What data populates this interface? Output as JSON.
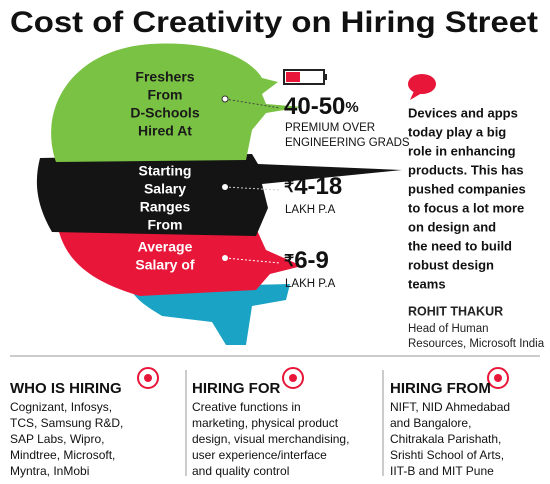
{
  "title": "Cost of Creativity on Hiring Street",
  "stats": [
    {
      "label": [
        "Freshers",
        "From",
        "D-Schools",
        "Hired At"
      ],
      "value": "40-50",
      "unit": "%",
      "note": [
        "PREMIUM OVER",
        "ENGINEERING GRADS"
      ]
    },
    {
      "label": [
        "Starting",
        "Salary",
        "Ranges",
        "From"
      ],
      "prefix": "₹",
      "value": "4-18",
      "note": [
        "LAKH P.A"
      ]
    },
    {
      "label": [
        "Average",
        "Salary of"
      ],
      "prefix": "₹",
      "value": "6-9",
      "note": [
        "LAKH P.A"
      ]
    }
  ],
  "quote": {
    "lines": [
      "Devices and apps",
      "today play a big",
      "role in enhancing",
      "products. This has",
      "pushed companies",
      "to focus a lot more",
      "on design and",
      "the need to build",
      "robust design",
      "teams"
    ],
    "author": "ROHIT THAKUR",
    "role": [
      "Head of Human",
      "Resources, Microsoft India"
    ]
  },
  "sections": [
    {
      "title": "WHO IS HIRING",
      "lines": [
        "Cognizant, Infosys,",
        "TCS, Samsung R&D,",
        "SAP Labs, Wipro,",
        "Mindtree, Microsoft,",
        "Myntra, InMobi"
      ]
    },
    {
      "title": "HIRING FOR",
      "lines": [
        "Creative functions in",
        "marketing, physical product",
        "design, visual merchandising,",
        "user experience/interface",
        "and quality control"
      ]
    },
    {
      "title": "HIRING FROM",
      "lines": [
        "NIFT, NID Ahmedabad",
        "and Bangalore,",
        "Chitrakala Parishath,",
        "Srishti School of Arts,",
        "IIT-B and MIT Pune"
      ]
    }
  ]
}
